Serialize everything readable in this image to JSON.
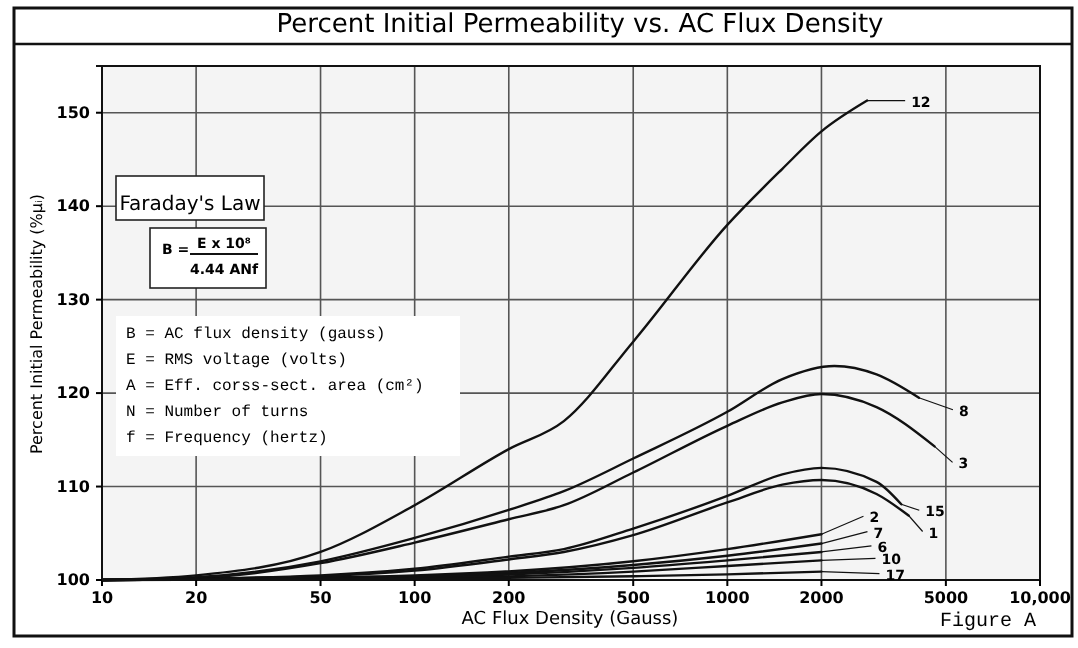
{
  "chart_data": {
    "type": "line",
    "title": "Percent Initial Permeability  vs.  AC Flux Density",
    "xlabel": "AC Flux Density (Gauss)",
    "ylabel": "Percent Initial Permeability (%μᵢ)",
    "log": "x",
    "xlim": [
      10,
      10000
    ],
    "ylim": [
      100,
      155
    ],
    "xticks": [
      10,
      20,
      50,
      100,
      200,
      500,
      1000,
      2000,
      5000,
      {
        "value": 10000,
        "label": "10,000"
      }
    ],
    "yticks": [
      100,
      110,
      120,
      130,
      140,
      150
    ],
    "grid": true,
    "legend": "right",
    "marker": "none",
    "line_style": "solid",
    "series": [
      {
        "name": "12",
        "color": "#111111",
        "x": [
          10,
          20,
          50,
          100,
          200,
          300,
          500,
          1000,
          1500,
          2000,
          2800
        ],
        "values": [
          100,
          100.5,
          103,
          108,
          114,
          117,
          125.5,
          138,
          144,
          148,
          151.3
        ]
      },
      {
        "name": "8",
        "color": "#111111",
        "x": [
          10,
          20,
          50,
          100,
          200,
          300,
          500,
          1000,
          1500,
          2200,
          3000,
          4100
        ],
        "values": [
          100,
          100.3,
          102,
          104.5,
          107.5,
          109.5,
          113,
          118,
          121.5,
          122.9,
          122,
          119.5
        ]
      },
      {
        "name": "3",
        "color": "#111111",
        "x": [
          10,
          20,
          50,
          100,
          200,
          300,
          500,
          1000,
          1500,
          2000,
          3000,
          4600
        ],
        "values": [
          100,
          100.2,
          101.8,
          104,
          106.5,
          108,
          111.5,
          116.5,
          119,
          119.9,
          118.5,
          114.3
        ]
      },
      {
        "name": "15",
        "color": "#111111",
        "x": [
          10,
          50,
          100,
          200,
          300,
          500,
          1000,
          1500,
          2000,
          3000,
          3600
        ],
        "values": [
          100,
          100.5,
          101.2,
          102.5,
          103.3,
          105.5,
          109,
          111.3,
          112,
          110.5,
          108.1
        ]
      },
      {
        "name": "1",
        "color": "#111111",
        "x": [
          10,
          50,
          100,
          200,
          300,
          500,
          1000,
          1500,
          2000,
          3000,
          3800
        ],
        "values": [
          100,
          100.4,
          101,
          102.2,
          103,
          104.8,
          108.3,
          110.2,
          110.7,
          109.2,
          106.9
        ]
      },
      {
        "name": "2",
        "color": "#111111",
        "x": [
          10,
          100,
          500,
          1000,
          2000
        ],
        "values": [
          100,
          100.5,
          102,
          103.3,
          104.9
        ]
      },
      {
        "name": "7",
        "color": "#111111",
        "x": [
          10,
          100,
          500,
          1000,
          2000
        ],
        "values": [
          100,
          100.4,
          101.6,
          102.6,
          103.9
        ]
      },
      {
        "name": "6",
        "color": "#111111",
        "x": [
          10,
          100,
          500,
          1000,
          2000
        ],
        "values": [
          100,
          100.3,
          101.3,
          102.1,
          103
        ]
      },
      {
        "name": "10",
        "color": "#111111",
        "x": [
          10,
          100,
          500,
          1000,
          2000
        ],
        "values": [
          100,
          100.2,
          100.9,
          101.5,
          102.1
        ]
      },
      {
        "name": "17",
        "color": "#111111",
        "x": [
          10,
          100,
          500,
          1000,
          2000
        ],
        "values": [
          100,
          100.1,
          100.4,
          100.6,
          100.9
        ]
      }
    ],
    "annotations": [
      "Faraday's Law",
      "B =",
      "E x 10⁸",
      "4.44 ANf",
      "B = AC flux density (gauss)",
      "E = RMS voltage (volts)",
      "A = Eff. corss-sect. area (cm²)",
      "N = Number of turns",
      "f = Frequency (hertz)",
      "Figure A"
    ]
  }
}
